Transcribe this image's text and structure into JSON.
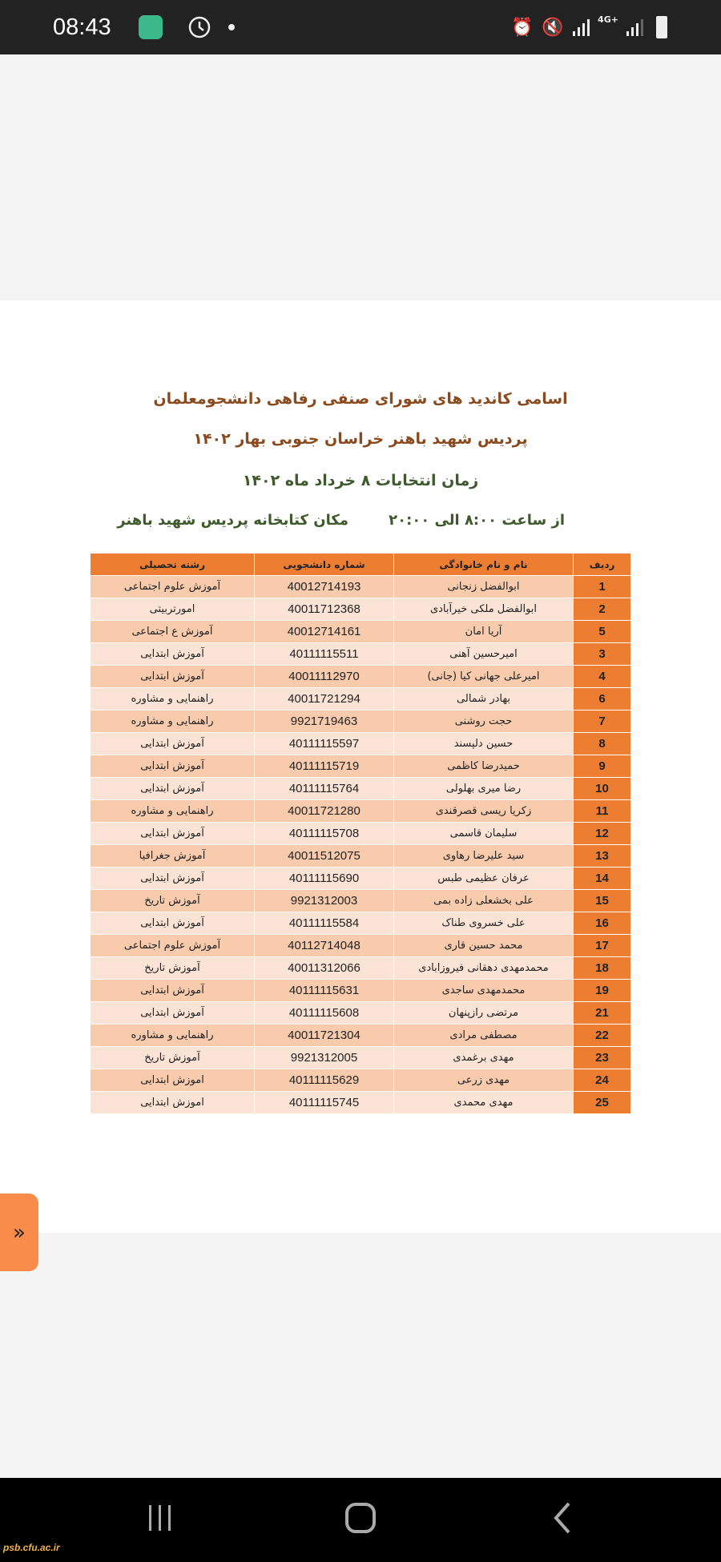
{
  "status_bar": {
    "time": "08:43",
    "network": "4G+"
  },
  "document": {
    "title_line1": "اسامی کاندید های شورای صنفی رفاهی دانشجومعلمان",
    "title_line2": "پردیس شهید باهنر خراسان جنوبی بهار ۱۴۰۲",
    "title_line3": "زمان انتخابات ۸ خرداد ماه ۱۴۰۲",
    "time_info": "از ساعت  ۸:۰۰ الی ۲۰:۰۰",
    "location_info": "مکان کتابخانه پردیس شهید باهنر"
  },
  "table": {
    "headers": [
      "ردیف",
      "نام و نام خانوادگی",
      "شماره دانشجویی",
      "رشته تحصیلی"
    ],
    "rows": [
      [
        "1",
        "ابوالفضل زنجانی",
        "40012714193",
        "آموزش علوم اجتماعی"
      ],
      [
        "2",
        "ابوالفضل ملکی خیرآبادی",
        "40011712368",
        "امورتربیتی"
      ],
      [
        "5",
        "آریا امان",
        "40012714161",
        "آموزش ع اجتماعی"
      ],
      [
        "3",
        "امیرحسین آهنی",
        "40111115511",
        "آموزش ابتدایی"
      ],
      [
        "4",
        "امیرعلی جهانی کیا (جانی)",
        "40011112970",
        "آموزش ابتدایی"
      ],
      [
        "6",
        "بهادر شمالی",
        "40011721294",
        "راهنمایی و مشاوره"
      ],
      [
        "7",
        "حجت روشنی",
        "9921719463",
        "راهنمایی و مشاوره"
      ],
      [
        "8",
        "حسین دلپسند",
        "40111115597",
        "آموزش ابتدایی"
      ],
      [
        "9",
        "حمیدرضا کاظمی",
        "40111115719",
        "آموزش ابتدایی"
      ],
      [
        "10",
        "رضا میری بهلولی",
        "40111115764",
        "آموزش ابتدایی"
      ],
      [
        "11",
        "زکریا ریسی قصرقندی",
        "40011721280",
        "راهنمایی و مشاوره"
      ],
      [
        "12",
        "سلیمان قاسمی",
        "40111115708",
        "آموزش ابتدایی"
      ],
      [
        "13",
        "سید علیرضا رهاوی",
        "40011512075",
        "آموزش جغرافیا"
      ],
      [
        "14",
        "عرفان عظیمی طبس",
        "40111115690",
        "آموزش ابتدایی"
      ],
      [
        "15",
        "علی بخشعلی زاده بمی",
        "9921312003",
        "آموزش تاریخ"
      ],
      [
        "16",
        "علی خسروی طناک",
        "40111115584",
        "آموزش ابتدایی"
      ],
      [
        "17",
        "محمد حسین قاری",
        "40112714048",
        "آموزش علوم اجتماعی"
      ],
      [
        "18",
        "محمدمهدی دهقانی فیروزابادی",
        "40011312066",
        "آموزش تاریخ"
      ],
      [
        "19",
        "محمدمهدی ساجدی",
        "40111115631",
        "آموزش ابتدایی"
      ],
      [
        "21",
        "مرتضی رازپنهان",
        "40111115608",
        "آموزش ابتدایی"
      ],
      [
        "22",
        "مصطفی مرادی",
        "40011721304",
        "راهنمایی و مشاوره"
      ],
      [
        "23",
        "مهدی برغمدی",
        "9921312005",
        "آموزش تاریخ"
      ],
      [
        "24",
        "مهدی زرعی",
        "40111115629",
        "اموزش ابتدایی"
      ],
      [
        "25",
        "مهدی محمدی",
        "40111115745",
        "اموزش ابتدایی"
      ]
    ]
  },
  "side_tab": {
    "icon": "double-chevron-right-icon",
    "label": "»"
  },
  "watermark": "psb.cfu.ac.ir",
  "colors": {
    "header": "#ed7d31",
    "row_odd": "#f8cbad",
    "row_even": "#fbe4d5",
    "title_brown": "#8a4a1e",
    "title_green": "#3e5a2c"
  }
}
